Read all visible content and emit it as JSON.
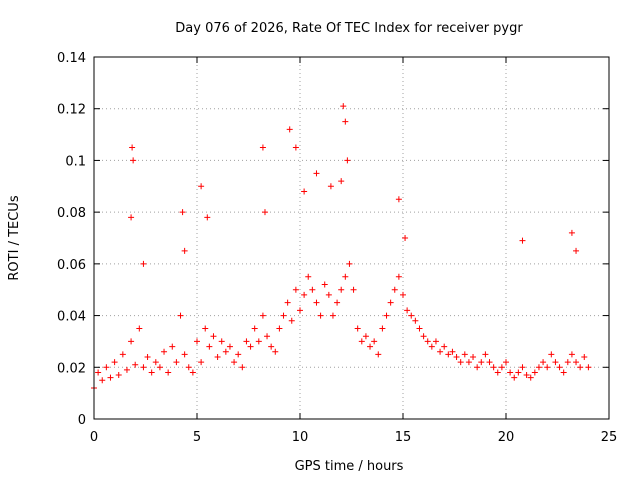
{
  "chart_data": {
    "type": "scatter",
    "title": "Day 076 of 2026, Rate Of TEC Index for receiver pygr",
    "xlabel": "GPS time / hours",
    "ylabel": "ROTI / TECUs",
    "xlim": [
      0,
      25
    ],
    "ylim": [
      0,
      0.14
    ],
    "xticks": [
      0,
      5,
      10,
      15,
      20,
      25
    ],
    "xtick_labels": [
      "0",
      "5",
      "10",
      "15",
      "20",
      "25"
    ],
    "yticks": [
      0,
      0.02,
      0.04,
      0.06,
      0.08,
      0.1,
      0.12,
      0.14
    ],
    "ytick_labels": [
      "0",
      "0.02",
      "0.04",
      "0.06",
      "0.08",
      "0.1",
      "0.12",
      "0.14"
    ],
    "grid": true,
    "marker": "plus",
    "color": "#ff0000",
    "series": [
      {
        "x": [
          0.0,
          0.2,
          0.4,
          0.6,
          0.8,
          1.0,
          1.2,
          1.4,
          1.6,
          1.8,
          2.0,
          2.2,
          2.4,
          2.6,
          2.8,
          3.0,
          3.2,
          3.4,
          3.6,
          3.8,
          4.0,
          4.2,
          4.4,
          4.6,
          4.8,
          5.0,
          5.2,
          5.4,
          5.6,
          5.8,
          6.0,
          6.2,
          6.4,
          6.6,
          6.8,
          7.0,
          7.2,
          7.4,
          7.6,
          7.8,
          8.0,
          8.2,
          8.4,
          8.6,
          8.8,
          9.0,
          9.2,
          9.4,
          9.6,
          9.8,
          10.0,
          10.2,
          10.4,
          10.6,
          10.8,
          11.0,
          11.2,
          11.4,
          11.6,
          11.8,
          12.0,
          12.2,
          12.4,
          12.6,
          12.8,
          13.0,
          13.2,
          13.4,
          13.6,
          13.8,
          14.0,
          14.2,
          14.4,
          14.6,
          14.8,
          15.0,
          15.2,
          15.4,
          15.6,
          15.8,
          16.0,
          16.2,
          16.4,
          16.6,
          16.8,
          17.0,
          17.2,
          17.4,
          17.6,
          17.8,
          18.0,
          18.2,
          18.4,
          18.6,
          18.8,
          19.0,
          19.2,
          19.4,
          19.6,
          19.8,
          20.0,
          20.2,
          20.4,
          20.6,
          20.8,
          21.0,
          21.2,
          21.4,
          21.6,
          21.8,
          22.0,
          22.2,
          22.4,
          22.6,
          22.8,
          23.0,
          23.2,
          23.4,
          23.6,
          23.8,
          24.0,
          1.85,
          1.9,
          1.8,
          2.4,
          4.3,
          4.4,
          5.2,
          5.5,
          8.2,
          8.3,
          9.5,
          9.8,
          10.2,
          10.8,
          11.5,
          12.1,
          12.2,
          12.3,
          12.0,
          14.8,
          15.1,
          20.8,
          23.2,
          23.4
        ],
        "y": [
          0.012,
          0.018,
          0.015,
          0.02,
          0.016,
          0.022,
          0.017,
          0.025,
          0.019,
          0.03,
          0.021,
          0.035,
          0.02,
          0.024,
          0.018,
          0.022,
          0.02,
          0.026,
          0.018,
          0.028,
          0.022,
          0.04,
          0.025,
          0.02,
          0.018,
          0.03,
          0.022,
          0.035,
          0.028,
          0.032,
          0.024,
          0.03,
          0.026,
          0.028,
          0.022,
          0.025,
          0.02,
          0.03,
          0.028,
          0.035,
          0.03,
          0.04,
          0.032,
          0.028,
          0.026,
          0.035,
          0.04,
          0.045,
          0.038,
          0.05,
          0.042,
          0.048,
          0.055,
          0.05,
          0.045,
          0.04,
          0.052,
          0.048,
          0.04,
          0.045,
          0.05,
          0.055,
          0.06,
          0.05,
          0.035,
          0.03,
          0.032,
          0.028,
          0.03,
          0.025,
          0.035,
          0.04,
          0.045,
          0.05,
          0.055,
          0.048,
          0.042,
          0.04,
          0.038,
          0.035,
          0.032,
          0.03,
          0.028,
          0.03,
          0.026,
          0.028,
          0.025,
          0.026,
          0.024,
          0.022,
          0.025,
          0.022,
          0.024,
          0.02,
          0.022,
          0.025,
          0.022,
          0.02,
          0.018,
          0.02,
          0.022,
          0.018,
          0.016,
          0.018,
          0.02,
          0.017,
          0.016,
          0.018,
          0.02,
          0.022,
          0.02,
          0.025,
          0.022,
          0.02,
          0.018,
          0.022,
          0.025,
          0.022,
          0.02,
          0.024,
          0.02,
          0.105,
          0.1,
          0.078,
          0.06,
          0.08,
          0.065,
          0.09,
          0.078,
          0.105,
          0.08,
          0.112,
          0.105,
          0.088,
          0.095,
          0.09,
          0.121,
          0.115,
          0.1,
          0.092,
          0.085,
          0.07,
          0.069,
          0.072,
          0.065
        ]
      }
    ]
  }
}
